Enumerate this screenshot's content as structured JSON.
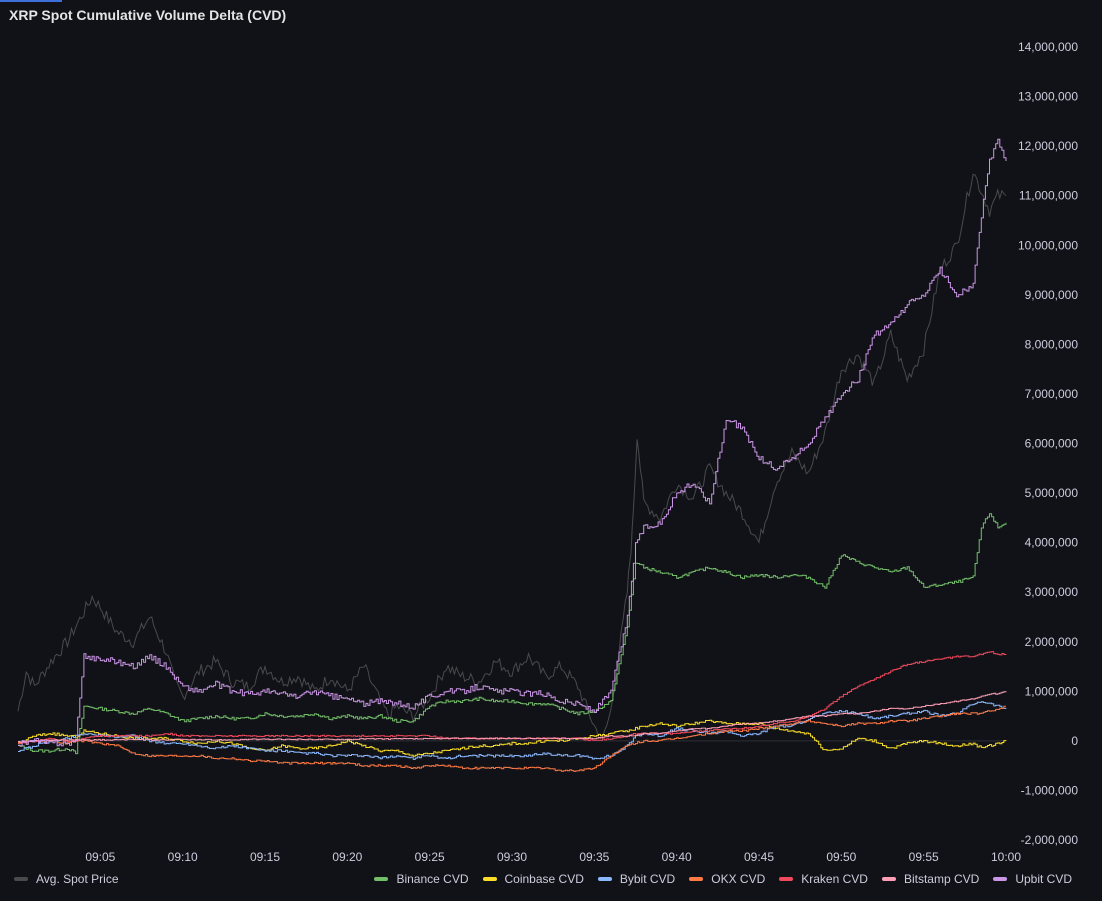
{
  "panel": {
    "title": "XRP Spot Cumulative Volume Delta (CVD)"
  },
  "colors": {
    "background": "#111217",
    "grid": "#22252b",
    "price": "#4a4a4d",
    "binance": "#73bf69",
    "coinbase": "#fade2a",
    "bybit": "#8ab8ff",
    "okx": "#ff7a45",
    "kraken": "#f2495c",
    "bitstamp": "#ff9eb5",
    "upbit": "#ca95e5"
  },
  "legend": {
    "price_label": "Avg. Spot Price",
    "series_labels": [
      "Binance CVD",
      "Coinbase CVD",
      "Bybit CVD",
      "OKX CVD",
      "Kraken CVD",
      "Bitstamp CVD",
      "Upbit CVD"
    ]
  },
  "chart_data": {
    "type": "line",
    "title": "XRP Spot Cumulative Volume Delta (CVD)",
    "x_unit": "minutes since 09:00",
    "xlim": [
      0,
      60
    ],
    "x_ticks": [
      5,
      10,
      15,
      20,
      25,
      30,
      35,
      40,
      45,
      50,
      55,
      60
    ],
    "x_tick_labels": [
      "09:05",
      "09:10",
      "09:15",
      "09:20",
      "09:25",
      "09:30",
      "09:35",
      "09:40",
      "09:45",
      "09:50",
      "09:55",
      "10:00"
    ],
    "ylim": [
      -2000000,
      14000000
    ],
    "y_ticks": [
      14000000,
      13000000,
      12000000,
      11000000,
      10000000,
      9000000,
      8000000,
      7000000,
      6000000,
      5000000,
      4000000,
      3000000,
      2000000,
      1000000,
      0,
      -1000000,
      -2000000
    ],
    "y_tick_labels": [
      "14,000,000",
      "13,000,000",
      "12,000,000",
      "11,000,000",
      "10,000,000",
      "9,000,000",
      "8,000,000",
      "7,000,000",
      "6,000,000",
      "5,000,000",
      "4,000,000",
      "3,000,000",
      "2,000,000",
      "1,000,000",
      "0",
      "-1,000,000",
      "-2,000,000"
    ],
    "grid": false,
    "legend_position": "bottom",
    "price_series": {
      "name": "Avg. Spot Price",
      "note": "plotted on the same visual scale as the CVD series",
      "x": [
        0,
        0.5,
        1,
        2,
        3,
        3.5,
        4,
        4.5,
        5,
        6,
        7,
        8,
        9,
        9.5,
        10,
        11,
        12,
        13,
        14,
        15,
        16,
        17,
        18,
        19,
        20,
        21,
        22,
        22.5,
        23,
        24,
        25,
        26,
        27,
        28,
        29,
        30,
        31,
        32,
        33,
        34,
        35,
        35.5,
        36,
        37,
        37.3,
        37.6,
        38,
        39,
        40,
        41,
        42,
        43,
        44,
        45,
        46,
        47,
        48,
        49,
        50,
        51,
        52,
        53,
        54,
        55,
        56,
        57,
        58,
        59,
        59.5,
        60
      ],
      "values": [
        600000,
        1400000,
        1100000,
        1600000,
        2000000,
        2300000,
        2600000,
        2900000,
        2700000,
        2200000,
        2000000,
        2500000,
        1800000,
        1200000,
        900000,
        1400000,
        1600000,
        1200000,
        1100000,
        1500000,
        1200000,
        1300000,
        1000000,
        1300000,
        1000000,
        1500000,
        800000,
        500000,
        700000,
        500000,
        900000,
        1500000,
        1300000,
        1200000,
        1600000,
        1400000,
        1700000,
        1300000,
        1500000,
        1100000,
        300000,
        0,
        600000,
        3000000,
        4200000,
        6200000,
        4800000,
        4500000,
        5200000,
        4900000,
        5500000,
        5000000,
        4600000,
        4000000,
        5200000,
        5800000,
        5400000,
        6200000,
        7500000,
        7800000,
        7200000,
        8200000,
        7300000,
        7900000,
        9500000,
        10000000,
        11500000,
        10700000,
        11000000,
        11000000
      ]
    },
    "x": [
      0,
      1,
      2,
      3,
      3.5,
      4,
      5,
      6,
      7,
      8,
      9,
      10,
      11,
      12,
      13,
      14,
      15,
      16,
      17,
      18,
      19,
      20,
      21,
      22,
      23,
      24,
      25,
      26,
      27,
      28,
      29,
      30,
      31,
      32,
      33,
      34,
      35,
      36,
      37,
      37.5,
      38,
      39,
      40,
      41,
      42,
      43,
      44,
      45,
      46,
      47,
      48,
      49,
      50,
      51,
      52,
      53,
      54,
      55,
      56,
      57,
      58,
      58.5,
      59,
      59.5,
      60
    ],
    "series": [
      {
        "name": "Binance CVD",
        "values": [
          -100000,
          -200000,
          -200000,
          -150000,
          -250000,
          700000,
          650000,
          600000,
          550000,
          650000,
          550000,
          400000,
          450000,
          500000,
          450000,
          450000,
          550000,
          500000,
          500000,
          550000,
          450000,
          500000,
          450000,
          500000,
          400000,
          400000,
          700000,
          800000,
          800000,
          850000,
          800000,
          800000,
          750000,
          750000,
          650000,
          550000,
          600000,
          800000,
          2300000,
          3600000,
          3500000,
          3400000,
          3300000,
          3400000,
          3500000,
          3400000,
          3300000,
          3350000,
          3300000,
          3350000,
          3300000,
          3100000,
          3750000,
          3600000,
          3500000,
          3400000,
          3500000,
          3100000,
          3150000,
          3200000,
          3300000,
          4300000,
          4600000,
          4300000,
          4400000
        ]
      },
      {
        "name": "Coinbase CVD",
        "values": [
          -50000,
          100000,
          150000,
          100000,
          80000,
          200000,
          150000,
          100000,
          50000,
          50000,
          50000,
          0,
          -50000,
          0,
          -50000,
          -150000,
          -200000,
          -100000,
          -150000,
          -150000,
          -100000,
          0,
          -100000,
          -200000,
          -200000,
          -300000,
          -250000,
          -200000,
          -150000,
          -100000,
          -100000,
          -50000,
          -50000,
          0,
          0,
          50000,
          100000,
          150000,
          200000,
          250000,
          300000,
          350000,
          300000,
          350000,
          400000,
          350000,
          350000,
          350000,
          250000,
          200000,
          150000,
          -200000,
          -150000,
          50000,
          0,
          -150000,
          -50000,
          0,
          -50000,
          -100000,
          -50000,
          -150000,
          -100000,
          -50000,
          0
        ]
      },
      {
        "name": "Bybit CVD",
        "values": [
          -200000,
          -100000,
          0,
          50000,
          100000,
          150000,
          100000,
          80000,
          100000,
          0,
          -50000,
          -50000,
          -100000,
          -150000,
          -100000,
          -150000,
          -200000,
          -200000,
          -250000,
          -250000,
          -300000,
          -300000,
          -300000,
          -350000,
          -300000,
          -350000,
          -300000,
          -350000,
          -300000,
          -300000,
          -300000,
          -300000,
          -300000,
          -250000,
          -300000,
          -300000,
          -350000,
          -300000,
          -100000,
          100000,
          150000,
          100000,
          250000,
          200000,
          150000,
          200000,
          100000,
          150000,
          300000,
          300000,
          450000,
          550000,
          600000,
          550000,
          450000,
          500000,
          550000,
          600000,
          500000,
          550000,
          750000,
          800000,
          750000,
          700000,
          650000
        ]
      },
      {
        "name": "OKX CVD",
        "values": [
          -50000,
          0,
          0,
          -50000,
          0,
          0,
          -50000,
          -100000,
          -250000,
          -300000,
          -300000,
          -300000,
          -300000,
          -350000,
          -350000,
          -400000,
          -400000,
          -450000,
          -450000,
          -450000,
          -450000,
          -450000,
          -500000,
          -500000,
          -500000,
          -550000,
          -500000,
          -500000,
          -550000,
          -550000,
          -550000,
          -550000,
          -550000,
          -550000,
          -600000,
          -600000,
          -550000,
          -300000,
          -100000,
          -50000,
          0,
          0,
          50000,
          100000,
          150000,
          200000,
          200000,
          250000,
          300000,
          350000,
          400000,
          350000,
          300000,
          350000,
          350000,
          400000,
          400000,
          450000,
          500000,
          550000,
          550000,
          550000,
          600000,
          650000,
          700000
        ]
      },
      {
        "name": "Kraken CVD",
        "values": [
          -50000,
          0,
          50000,
          0,
          0,
          50000,
          100000,
          100000,
          100000,
          100000,
          150000,
          100000,
          100000,
          100000,
          100000,
          100000,
          100000,
          100000,
          100000,
          100000,
          100000,
          100000,
          100000,
          100000,
          100000,
          100000,
          100000,
          50000,
          50000,
          50000,
          50000,
          50000,
          50000,
          50000,
          50000,
          50000,
          0,
          50000,
          100000,
          150000,
          150000,
          150000,
          150000,
          200000,
          200000,
          250000,
          250000,
          300000,
          350000,
          400000,
          500000,
          650000,
          900000,
          1100000,
          1250000,
          1400000,
          1550000,
          1600000,
          1650000,
          1700000,
          1700000,
          1750000,
          1800000,
          1750000,
          1750000
        ]
      },
      {
        "name": "Bitstamp CVD",
        "values": [
          -20000,
          0,
          20000,
          20000,
          20000,
          20000,
          20000,
          20000,
          30000,
          20000,
          20000,
          30000,
          20000,
          20000,
          20000,
          30000,
          30000,
          30000,
          30000,
          30000,
          30000,
          30000,
          40000,
          40000,
          40000,
          40000,
          40000,
          50000,
          50000,
          50000,
          50000,
          50000,
          50000,
          50000,
          50000,
          50000,
          50000,
          100000,
          100000,
          100000,
          150000,
          150000,
          200000,
          250000,
          250000,
          300000,
          350000,
          350000,
          400000,
          450000,
          500000,
          500000,
          550000,
          550000,
          600000,
          650000,
          650000,
          700000,
          750000,
          800000,
          850000,
          900000,
          950000,
          950000,
          1000000
        ]
      },
      {
        "name": "Upbit CVD",
        "values": [
          -50000,
          0,
          -50000,
          -50000,
          0,
          1700000,
          1650000,
          1600000,
          1500000,
          1700000,
          1500000,
          1100000,
          1000000,
          1150000,
          1000000,
          950000,
          1000000,
          950000,
          900000,
          1000000,
          900000,
          850000,
          750000,
          800000,
          750000,
          700000,
          900000,
          1000000,
          1000000,
          1100000,
          1000000,
          1000000,
          950000,
          950000,
          800000,
          750000,
          600000,
          1000000,
          2500000,
          4000000,
          4300000,
          4400000,
          5000000,
          5200000,
          4800000,
          6500000,
          6300000,
          5700000,
          5500000,
          5700000,
          6000000,
          6500000,
          7000000,
          7300000,
          8200000,
          8400000,
          8800000,
          9000000,
          9500000,
          9000000,
          9200000,
          10600000,
          11700000,
          12100000,
          11700000
        ]
      }
    ]
  }
}
